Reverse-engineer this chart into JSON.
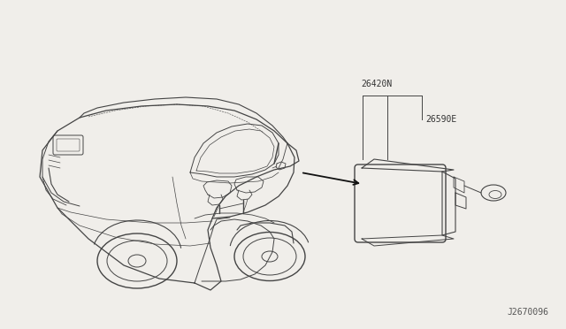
{
  "background_color": "#f0eeea",
  "diagram_id": "J2670096",
  "label_26420N": "26420N",
  "label_26590E": "26590E",
  "line_color": "#444444",
  "text_color": "#333333"
}
